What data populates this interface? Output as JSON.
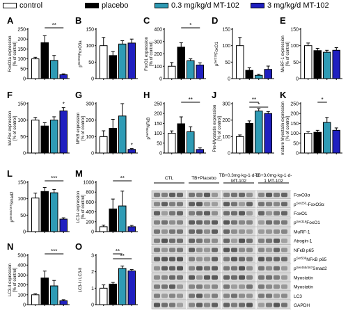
{
  "legend": {
    "items": [
      {
        "label": "control",
        "color": "#ffffff"
      },
      {
        "label": "placebo",
        "color": "#000000"
      },
      {
        "label": "0.3 mg/kg/d MT-102",
        "color": "#2f9bb5"
      },
      {
        "label": "3 mg/kg/d MT-102",
        "color": "#2020c0"
      }
    ]
  },
  "colors": {
    "control": "#ffffff",
    "placebo": "#000000",
    "low": "#2f9bb5",
    "high": "#2020c0"
  },
  "chart_data": [
    {
      "id": "A",
      "type": "bar",
      "ylabel": "FoxO3a expression\n[% of control]",
      "ylim": [
        0,
        250
      ],
      "yticks": [
        0,
        50,
        100,
        150,
        200,
        250
      ],
      "values": [
        100,
        182,
        92,
        20
      ],
      "errors": [
        8,
        35,
        25,
        4
      ],
      "sig": [
        {
          "from": 1,
          "to": 3,
          "label": "**"
        }
      ],
      "star": null
    },
    {
      "id": "B",
      "type": "bar",
      "ylabel": "pSer253FoxO3a",
      "ylim": [
        0,
        150
      ],
      "yticks": [
        0,
        50,
        100,
        150
      ],
      "values": [
        100,
        70,
        105,
        108
      ],
      "errors": [
        25,
        12,
        10,
        12
      ],
      "sig": [],
      "star": null
    },
    {
      "id": "C",
      "type": "bar",
      "ylabel": "FoxO1 expression\n[% of control]",
      "ylim": [
        0,
        400
      ],
      "yticks": [
        0,
        100,
        200,
        300,
        400
      ],
      "values": [
        100,
        255,
        145,
        110
      ],
      "errors": [
        30,
        35,
        15,
        18
      ],
      "sig": [
        {
          "from": 1,
          "to": 3,
          "label": "*"
        }
      ],
      "star": null
    },
    {
      "id": "D",
      "type": "bar",
      "ylabel": "pSer319FoxO1",
      "ylim": [
        0,
        150
      ],
      "yticks": [
        0,
        50,
        100,
        150
      ],
      "values": [
        100,
        25,
        10,
        28
      ],
      "errors": [
        25,
        8,
        3,
        10
      ],
      "sig": [],
      "star": null
    },
    {
      "id": "E",
      "type": "bar",
      "ylabel": "MuRF-1 expression\n[% of control]",
      "ylim": [
        0,
        150
      ],
      "yticks": [
        0,
        50,
        100,
        150
      ],
      "values": [
        100,
        85,
        80,
        86
      ],
      "errors": [
        8,
        7,
        6,
        8
      ],
      "sig": [],
      "star": null
    },
    {
      "id": "F",
      "type": "bar",
      "ylabel": "MAFbx expression\n[% of control]",
      "ylim": [
        0,
        150
      ],
      "yticks": [
        0,
        50,
        100,
        150
      ],
      "values": [
        100,
        82,
        100,
        128
      ],
      "errors": [
        8,
        10,
        10,
        10
      ],
      "sig": [],
      "star": {
        "bar": 3,
        "label": "*"
      }
    },
    {
      "id": "G",
      "type": "bar",
      "ylabel": "NFkB expression\n[% of control]",
      "ylim": [
        0,
        300
      ],
      "yticks": [
        0,
        100,
        200,
        300
      ],
      "values": [
        100,
        150,
        225,
        22
      ],
      "errors": [
        35,
        55,
        80,
        5
      ],
      "sig": [],
      "star": {
        "bar": 3,
        "label": "*"
      }
    },
    {
      "id": "H",
      "type": "bar",
      "ylabel": "pSer536NFkB",
      "ylim": [
        0,
        250
      ],
      "yticks": [
        0,
        50,
        100,
        150,
        200,
        250
      ],
      "values": [
        100,
        148,
        108,
        18
      ],
      "errors": [
        12,
        35,
        25,
        8
      ],
      "sig": [
        {
          "from": 1,
          "to": 3,
          "label": "**"
        }
      ],
      "star": null
    },
    {
      "id": "J",
      "type": "bar",
      "ylabel": "Pre-Myostatin expression\n[% of control]",
      "ylim": [
        0,
        300
      ],
      "yticks": [
        0,
        100,
        200,
        300
      ],
      "values": [
        100,
        180,
        255,
        240
      ],
      "errors": [
        10,
        15,
        15,
        12
      ],
      "sig": [
        {
          "from": 1,
          "to": 2,
          "label": "**"
        },
        {
          "from": 1,
          "to": 3,
          "label": "*"
        }
      ],
      "star": null
    },
    {
      "id": "K",
      "type": "bar",
      "ylabel": "mature Myostatin expression\n[% of control]",
      "ylim": [
        0,
        250
      ],
      "yticks": [
        0,
        50,
        100,
        150,
        200,
        250
      ],
      "values": [
        100,
        105,
        155,
        115
      ],
      "errors": [
        8,
        10,
        25,
        12
      ],
      "sig": [
        {
          "from": 1,
          "to": 2,
          "label": "*"
        }
      ],
      "star": null
    },
    {
      "id": "L",
      "type": "bar",
      "ylabel": "pSer465/467Smad2",
      "ylim": [
        0,
        150
      ],
      "yticks": [
        0,
        50,
        100,
        150
      ],
      "values": [
        102,
        122,
        118,
        38
      ],
      "errors": [
        15,
        12,
        10,
        4
      ],
      "sig": [
        {
          "from": 1,
          "to": 3,
          "label": "***"
        }
      ],
      "star": null
    },
    {
      "id": "M",
      "type": "bar",
      "ylabel": "LC3-I expression\n[% of control]",
      "ylim": [
        0,
        1000
      ],
      "yticks": [
        0,
        200,
        400,
        600,
        800,
        1000
      ],
      "values": [
        100,
        460,
        520,
        100
      ],
      "errors": [
        30,
        200,
        300,
        25
      ],
      "sig": [
        {
          "from": 1,
          "to": 3,
          "label": "**"
        }
      ],
      "star": null
    },
    {
      "id": "N",
      "type": "bar",
      "ylabel": "LC3-II expression\n[% of control]",
      "ylim": [
        0,
        500
      ],
      "yticks": [
        0,
        100,
        200,
        300,
        400,
        500
      ],
      "values": [
        100,
        270,
        190,
        40
      ],
      "errors": [
        10,
        70,
        55,
        10
      ],
      "sig": [
        {
          "from": 1,
          "to": 3,
          "label": "***"
        }
      ],
      "star": null
    },
    {
      "id": "O",
      "type": "bar",
      "ylabel": "LC3-I / LC3-II",
      "ylim": [
        0,
        3
      ],
      "yticks": [
        0,
        1,
        2,
        3
      ],
      "values": [
        1.0,
        1.25,
        2.2,
        2.05
      ],
      "errors": [
        0.2,
        0.1,
        0.15,
        0.08
      ],
      "sig": [
        {
          "from": 1,
          "to": 2,
          "label": "**"
        },
        {
          "from": 1,
          "to": 3,
          "label": "**"
        }
      ],
      "star": null
    }
  ],
  "blot": {
    "group_labels": [
      "CTL",
      "TB+Placebo",
      "TB+0.3mg·kg-1·d-1\nMT-102",
      "TB+3.0mg·kg-1·d-\n1 MT-102"
    ],
    "rows": [
      "FoxO3α",
      "pSer253-FoxO3α",
      "FoxO1",
      "pSer319FoxO1",
      "MuRF-1",
      "Atrogin-1",
      "NFκB p65",
      "pSer536NFκB p65",
      "pSer465/467Smad2",
      "Myostatin",
      "Myostatin",
      "LC3",
      "GAPDH"
    ]
  }
}
